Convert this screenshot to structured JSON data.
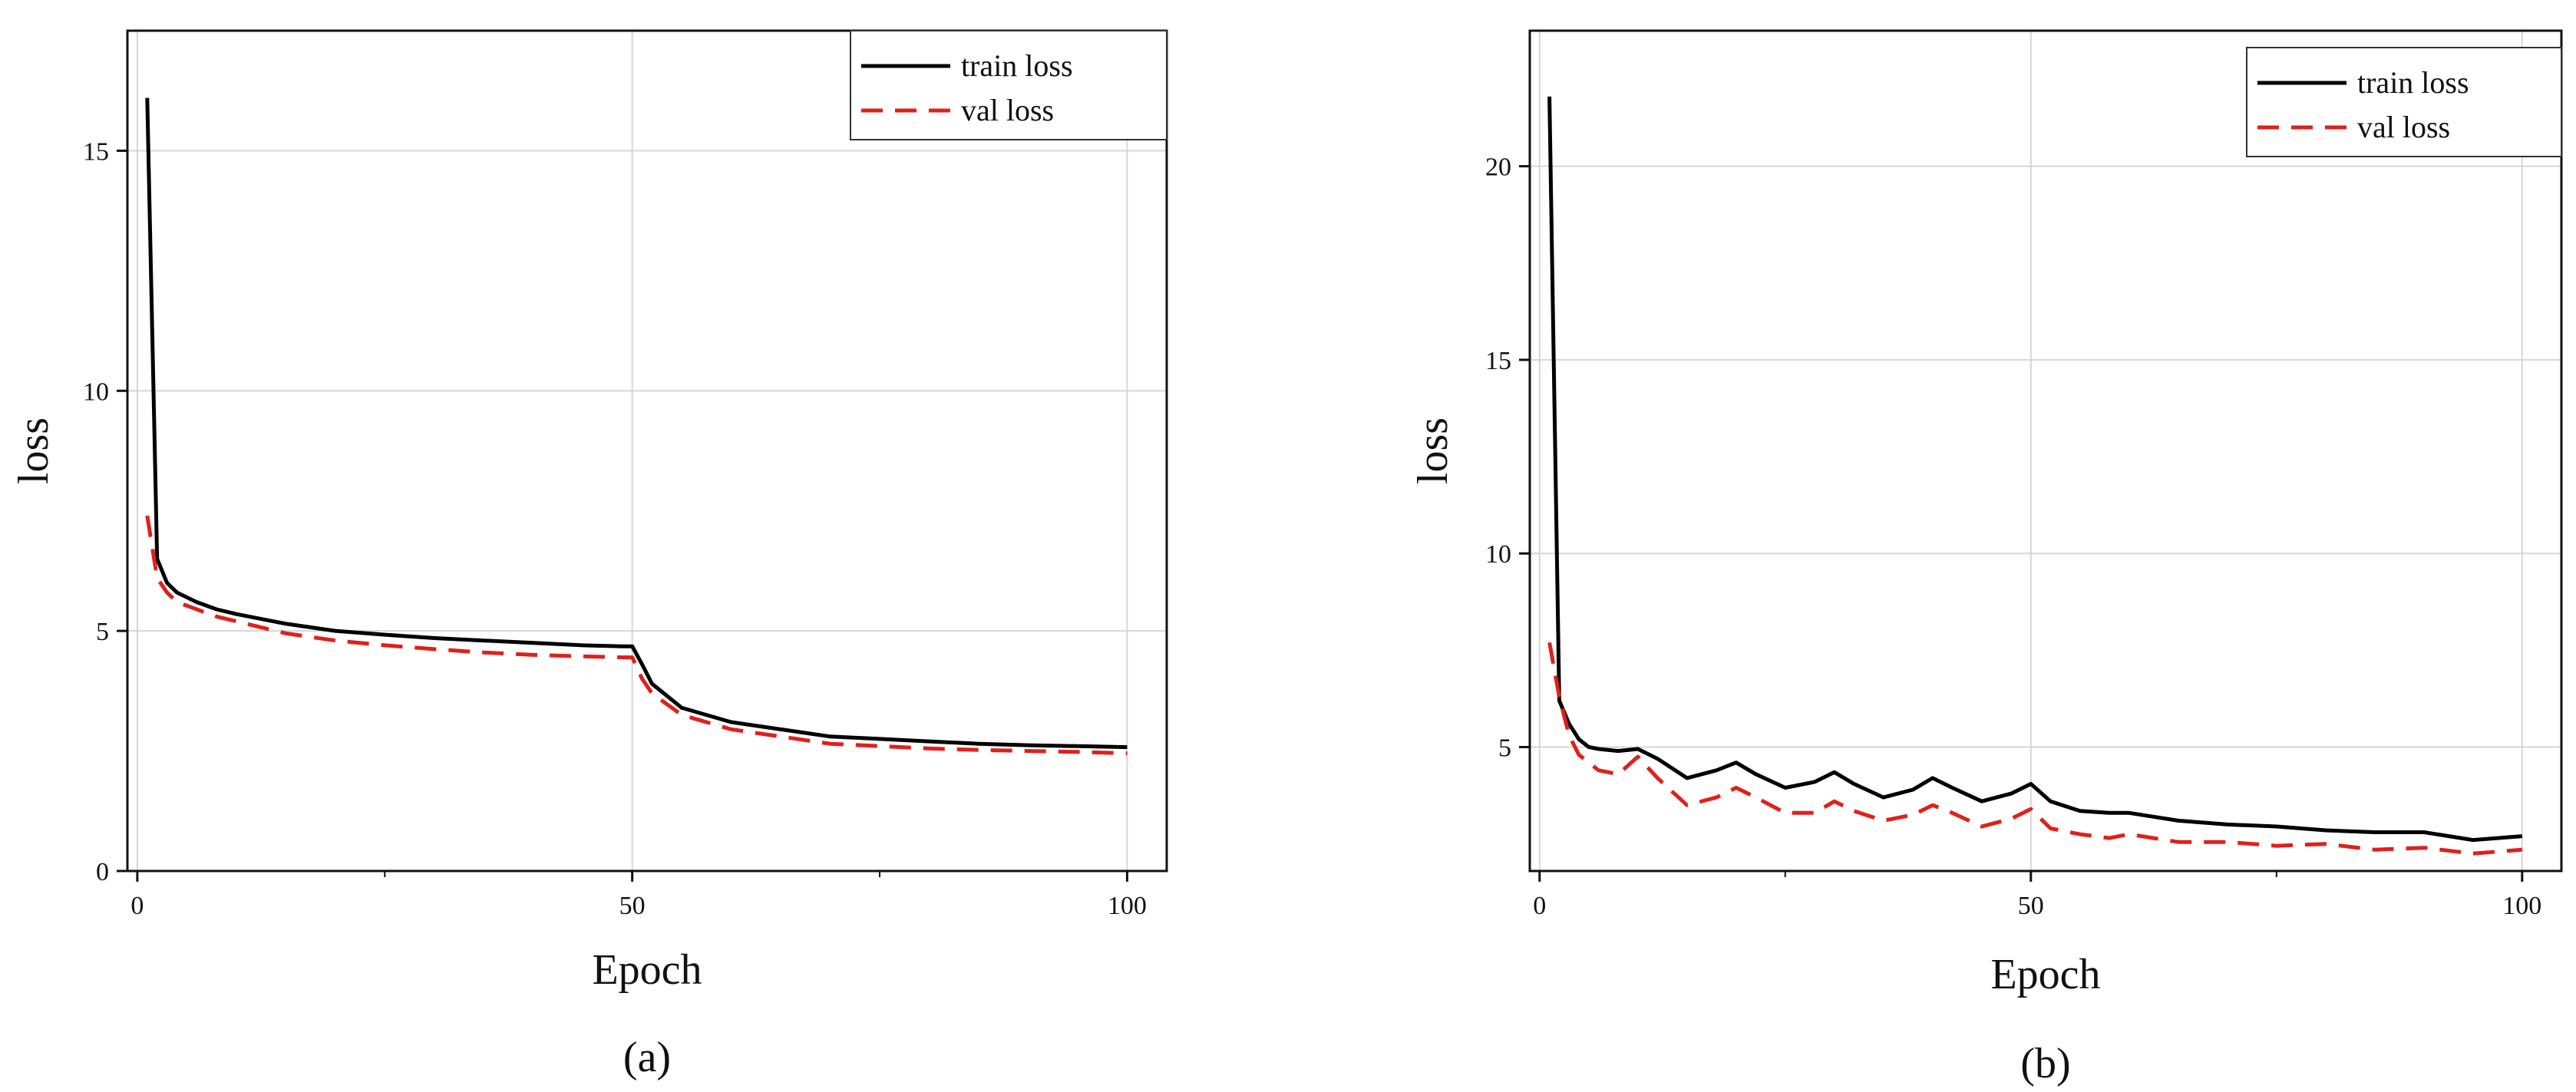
{
  "chart_data": [
    {
      "type": "line",
      "caption": "(a)",
      "xlabel": "Epoch",
      "ylabel": "loss",
      "xlim": [
        -1,
        104
      ],
      "ylim": [
        0,
        17.5
      ],
      "xticks": [
        0,
        50,
        100
      ],
      "yticks": [
        0,
        5,
        10,
        15
      ],
      "grid": true,
      "legend_position": "top-right",
      "series": [
        {
          "name": "train loss",
          "color": "#000000",
          "style": "solid",
          "x": [
            1,
            2,
            3,
            4,
            6,
            8,
            10,
            15,
            20,
            25,
            30,
            35,
            40,
            45,
            49,
            50,
            51,
            52,
            55,
            60,
            65,
            70,
            75,
            80,
            85,
            90,
            95,
            100
          ],
          "y": [
            16.1,
            6.5,
            6.0,
            5.8,
            5.6,
            5.45,
            5.35,
            5.15,
            5.0,
            4.92,
            4.85,
            4.8,
            4.75,
            4.7,
            4.68,
            4.68,
            4.3,
            3.9,
            3.4,
            3.1,
            2.95,
            2.8,
            2.75,
            2.7,
            2.65,
            2.62,
            2.6,
            2.58
          ]
        },
        {
          "name": "val loss",
          "color": "#e0201a",
          "style": "dashed",
          "x": [
            1,
            2,
            3,
            4,
            6,
            8,
            10,
            15,
            20,
            25,
            30,
            35,
            40,
            45,
            49,
            50,
            51,
            52,
            55,
            60,
            65,
            70,
            75,
            80,
            85,
            90,
            95,
            100
          ],
          "y": [
            7.4,
            6.1,
            5.8,
            5.6,
            5.45,
            5.3,
            5.2,
            4.95,
            4.8,
            4.7,
            4.62,
            4.55,
            4.5,
            4.47,
            4.45,
            4.45,
            4.0,
            3.7,
            3.25,
            2.95,
            2.8,
            2.65,
            2.6,
            2.55,
            2.52,
            2.5,
            2.48,
            2.45
          ]
        }
      ]
    },
    {
      "type": "line",
      "caption": "(b)",
      "xlabel": "Epoch",
      "ylabel": "loss",
      "xlim": [
        -1,
        104
      ],
      "ylim": [
        1.8,
        23.5
      ],
      "xticks": [
        0,
        50,
        100
      ],
      "yticks": [
        5,
        10,
        15,
        20
      ],
      "grid": true,
      "legend_position": "top-right",
      "series": [
        {
          "name": "train loss",
          "color": "#000000",
          "style": "solid",
          "x": [
            1,
            2,
            3,
            4,
            5,
            6,
            8,
            10,
            12,
            15,
            18,
            20,
            22,
            25,
            28,
            30,
            32,
            35,
            38,
            40,
            42,
            45,
            48,
            50,
            52,
            55,
            58,
            60,
            65,
            70,
            75,
            80,
            85,
            90,
            95,
            100
          ],
          "y": [
            21.8,
            6.2,
            5.6,
            5.2,
            5.0,
            4.95,
            4.9,
            4.95,
            4.7,
            4.2,
            4.4,
            4.6,
            4.3,
            3.95,
            4.1,
            4.35,
            4.05,
            3.7,
            3.9,
            4.2,
            3.95,
            3.6,
            3.8,
            4.05,
            3.6,
            3.35,
            3.3,
            3.3,
            3.1,
            3.0,
            2.95,
            2.85,
            2.8,
            2.8,
            2.6,
            2.7
          ]
        },
        {
          "name": "val loss",
          "color": "#e0201a",
          "style": "dashed",
          "x": [
            1,
            2,
            3,
            4,
            5,
            6,
            8,
            10,
            12,
            15,
            18,
            20,
            22,
            25,
            28,
            30,
            32,
            35,
            38,
            40,
            42,
            45,
            48,
            50,
            52,
            55,
            58,
            60,
            65,
            70,
            75,
            80,
            85,
            90,
            95,
            100
          ],
          "y": [
            7.7,
            6.3,
            5.3,
            4.8,
            4.6,
            4.4,
            4.3,
            4.75,
            4.2,
            3.5,
            3.7,
            3.95,
            3.7,
            3.3,
            3.3,
            3.6,
            3.35,
            3.1,
            3.25,
            3.5,
            3.3,
            2.95,
            3.15,
            3.4,
            2.9,
            2.75,
            2.65,
            2.75,
            2.55,
            2.55,
            2.45,
            2.5,
            2.35,
            2.4,
            2.25,
            2.35
          ]
        }
      ]
    }
  ]
}
